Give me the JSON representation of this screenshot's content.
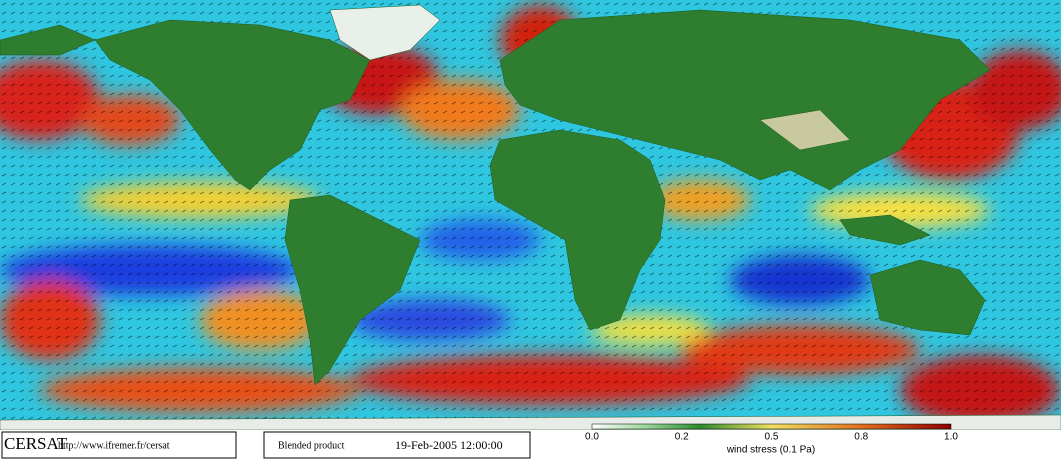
{
  "footer": {
    "logo": "CERSAT",
    "url": "http://www.ifremer.fr/cersat",
    "product": "Blended product",
    "date": "19-Feb-2005 12:00:00"
  },
  "colorbar": {
    "ticks": [
      "0.0",
      "0.2",
      "0.5",
      "0.8",
      "1.0"
    ],
    "label": "wind stress (0.1 Pa)"
  }
}
